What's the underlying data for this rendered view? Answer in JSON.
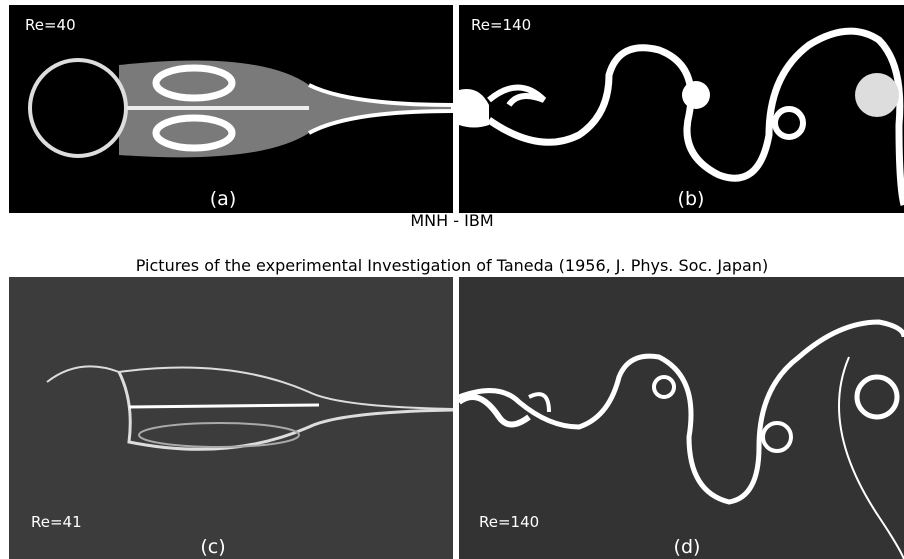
{
  "panels": [
    {
      "re": "Re=40",
      "label": "(a)"
    },
    {
      "re": "Re=140",
      "label": "(b)"
    },
    {
      "re": "Re=41",
      "label": "(c)"
    },
    {
      "re": "Re=140",
      "label": "(d)"
    }
  ],
  "source_label": "MNH - IBM",
  "caption": "Pictures of the experimental Investigation of Taneda (1956, J. Phys. Soc. Japan)"
}
